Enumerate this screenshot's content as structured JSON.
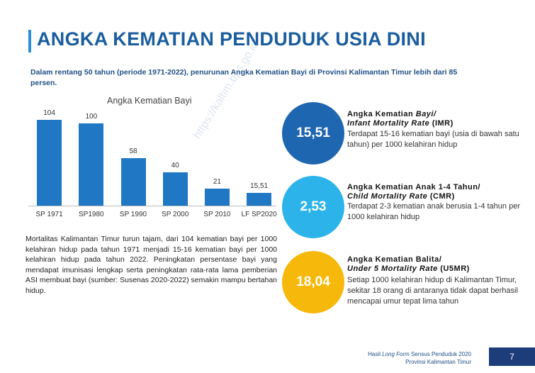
{
  "title": "ANGKA KEMATIAN PENDUDUK USIA DINI",
  "subtitle": "Dalam rentang 50 tahun (periode 1971-2022), penurunan Angka Kematian Bayi di Provinsi Kalimantan Timur lebih dari 85 persen.",
  "watermark": "https://kaltim.bps.go.id",
  "chart_data": {
    "type": "bar",
    "title": "Angka Kematian Bayi",
    "categories": [
      "SP 1971",
      "SP1980",
      "SP 1990",
      "SP 2000",
      "SP 2010",
      "LF SP2020"
    ],
    "values": [
      104,
      100,
      58,
      40,
      21,
      15.51
    ],
    "value_labels": [
      "104",
      "100",
      "58",
      "40",
      "21",
      "15,51"
    ],
    "xlabel": "",
    "ylabel": "",
    "ylim": [
      0,
      110
    ],
    "grid": false,
    "bar_color": "#2078c4"
  },
  "paragraph": "Mortalitas Kalimantan Timur turun tajam, dari 104 kematian bayi per 1000 kelahiran hidup pada tahun 1971 menjadi 15-16 kematian bayi per 1000 kelahiran hidup pada tahun 2022. Peningkatan persentase bayi yang mendapat imunisasi lengkap serta peningkatan rata-rata lama pemberian ASI membuat bayi (sumber: Susenas 2020-2022) semakin mampu bertahan hidup.",
  "indicators": [
    {
      "value": "15,51",
      "color": "#1f66b0",
      "title_line1_plain": "Angka Kematian ",
      "title_line1_italic": "Bayi/",
      "title_line2_italic": "Infant Mortality Rate",
      "title_line2_plain": " (IMR)",
      "desc": "Terdapat 15-16 kematian bayi (usia di bawah satu tahun) per 1000 kelahiran hidup"
    },
    {
      "value": "2,53",
      "color": "#2cb4ea",
      "title_line1_plain": "Angka Kematian Anak 1-4 Tahun/",
      "title_line1_italic": "",
      "title_line2_italic": "Child Mortality Rate",
      "title_line2_plain": " (CMR)",
      "desc": "Terdapat 2-3 kematian anak berusia 1-4 tahun per 1000 kelahiran hidup"
    },
    {
      "value": "18,04",
      "color": "#f6b80b",
      "title_line1_plain": "Angka Kematian Balita/",
      "title_line1_italic": "",
      "title_line2_italic": "Under 5 Mortality Rate",
      "title_line2_plain": " (U5MR)",
      "desc": "Setiap 1000 kelahiran hidup di Kalimantan Timur, sekitar 18 orang di antaranya tidak dapat berhasil mencapai umur tepat lima tahun"
    }
  ],
  "footer": {
    "line1_plain_a": "Hasil ",
    "line1_italic": "Long Form",
    "line1_plain_b": " Sensus Penduduk 2020",
    "line2": "Provinsi Kalimantan Timur"
  },
  "page_number": "7"
}
